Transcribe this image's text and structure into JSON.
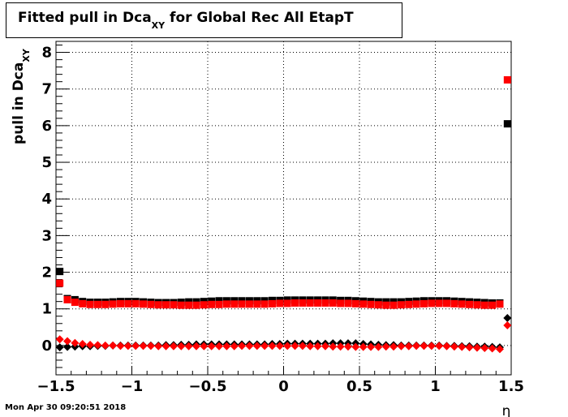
{
  "title": {
    "main": "Fitted pull in Dca",
    "subscript": "XY",
    "suffix": " for Global Rec All EtapT"
  },
  "timestamp": "Mon Apr 30 09:20:51 2018",
  "chart_data": {
    "type": "scatter",
    "title": "Fitted pull in Dca_XY for Global Rec All EtapT",
    "xlabel": "η",
    "ylabel": "pull in Dca_XY",
    "xlim": [
      -1.5,
      1.5
    ],
    "ylim": [
      -0.8,
      8.3
    ],
    "grid": true,
    "x_ticks": [
      -1.5,
      -1,
      -0.5,
      0,
      0.5,
      1,
      1.5
    ],
    "x_tick_labels": [
      "−1.5",
      "−1",
      "−0.5",
      "0",
      "0.5",
      "1",
      "1.5"
    ],
    "y_ticks": [
      0,
      1,
      2,
      3,
      4,
      5,
      6,
      7,
      8
    ],
    "y_tick_labels": [
      "0",
      "1",
      "2",
      "3",
      "4",
      "5",
      "6",
      "7",
      "8"
    ],
    "colors": {
      "black": "#000000",
      "red": "#ff0000"
    },
    "x": [
      -1.475,
      -1.425,
      -1.375,
      -1.325,
      -1.275,
      -1.225,
      -1.175,
      -1.125,
      -1.075,
      -1.025,
      -0.975,
      -0.925,
      -0.875,
      -0.825,
      -0.775,
      -0.725,
      -0.675,
      -0.625,
      -0.575,
      -0.525,
      -0.475,
      -0.425,
      -0.375,
      -0.325,
      -0.275,
      -0.225,
      -0.175,
      -0.125,
      -0.075,
      -0.025,
      0.025,
      0.075,
      0.125,
      0.175,
      0.225,
      0.275,
      0.325,
      0.375,
      0.425,
      0.475,
      0.525,
      0.575,
      0.625,
      0.675,
      0.725,
      0.775,
      0.825,
      0.875,
      0.925,
      0.975,
      1.025,
      1.075,
      1.125,
      1.175,
      1.225,
      1.275,
      1.325,
      1.375,
      1.425,
      1.475
    ],
    "series": [
      {
        "marker": "square",
        "color": "#000000",
        "values": [
          2.02,
          1.28,
          1.25,
          1.2,
          1.18,
          1.18,
          1.18,
          1.19,
          1.2,
          1.2,
          1.2,
          1.19,
          1.18,
          1.17,
          1.17,
          1.17,
          1.18,
          1.19,
          1.19,
          1.2,
          1.21,
          1.22,
          1.22,
          1.22,
          1.22,
          1.22,
          1.22,
          1.22,
          1.23,
          1.23,
          1.24,
          1.24,
          1.24,
          1.24,
          1.24,
          1.24,
          1.24,
          1.23,
          1.23,
          1.22,
          1.21,
          1.2,
          1.19,
          1.19,
          1.19,
          1.19,
          1.2,
          1.21,
          1.22,
          1.22,
          1.22,
          1.22,
          1.21,
          1.2,
          1.19,
          1.18,
          1.17,
          1.16,
          1.16,
          6.05
        ]
      },
      {
        "marker": "square",
        "color": "#ff0000",
        "values": [
          1.7,
          1.25,
          1.18,
          1.14,
          1.12,
          1.12,
          1.12,
          1.13,
          1.14,
          1.14,
          1.14,
          1.13,
          1.12,
          1.11,
          1.11,
          1.11,
          1.1,
          1.1,
          1.1,
          1.11,
          1.12,
          1.12,
          1.13,
          1.13,
          1.13,
          1.13,
          1.13,
          1.13,
          1.14,
          1.15,
          1.15,
          1.16,
          1.16,
          1.16,
          1.16,
          1.16,
          1.16,
          1.15,
          1.15,
          1.14,
          1.13,
          1.12,
          1.11,
          1.1,
          1.1,
          1.11,
          1.12,
          1.13,
          1.14,
          1.15,
          1.15,
          1.15,
          1.14,
          1.13,
          1.12,
          1.11,
          1.1,
          1.1,
          1.13,
          7.25
        ]
      },
      {
        "marker": "diamond",
        "color": "#000000",
        "values": [
          -0.05,
          -0.04,
          -0.03,
          -0.02,
          -0.02,
          -0.01,
          -0.01,
          0.0,
          0.0,
          0.0,
          0.0,
          0.0,
          0.0,
          0.0,
          0.01,
          0.01,
          0.02,
          0.02,
          0.03,
          0.03,
          0.03,
          0.03,
          0.03,
          0.03,
          0.03,
          0.03,
          0.03,
          0.03,
          0.04,
          0.04,
          0.05,
          0.05,
          0.05,
          0.05,
          0.05,
          0.05,
          0.06,
          0.06,
          0.06,
          0.06,
          0.04,
          0.03,
          0.02,
          0.01,
          0.01,
          0.0,
          0.0,
          0.0,
          0.0,
          0.0,
          0.0,
          -0.01,
          -0.01,
          -0.02,
          -0.02,
          -0.03,
          -0.03,
          -0.04,
          -0.05,
          0.75
        ]
      },
      {
        "marker": "diamond",
        "color": "#ff0000",
        "values": [
          0.17,
          0.12,
          0.07,
          0.04,
          0.02,
          0.01,
          0.0,
          0.0,
          -0.01,
          -0.01,
          -0.01,
          -0.01,
          -0.01,
          -0.02,
          -0.02,
          -0.02,
          -0.02,
          -0.02,
          -0.02,
          -0.02,
          -0.02,
          -0.02,
          -0.02,
          -0.02,
          -0.01,
          -0.01,
          -0.01,
          -0.01,
          -0.01,
          -0.01,
          -0.01,
          -0.01,
          -0.01,
          -0.02,
          -0.02,
          -0.02,
          -0.03,
          -0.03,
          -0.03,
          -0.04,
          -0.04,
          -0.04,
          -0.04,
          -0.03,
          -0.03,
          -0.02,
          -0.02,
          -0.01,
          -0.01,
          -0.01,
          -0.01,
          -0.02,
          -0.03,
          -0.04,
          -0.05,
          -0.06,
          -0.07,
          -0.08,
          -0.1,
          0.55
        ]
      }
    ]
  }
}
